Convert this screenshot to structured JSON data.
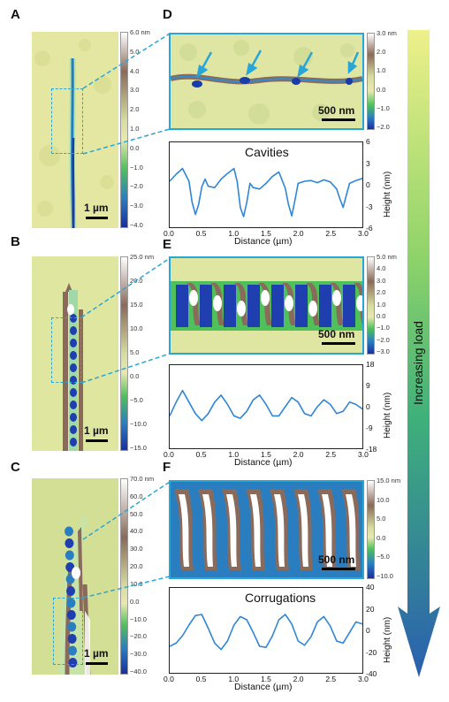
{
  "panels": {
    "A": {
      "label": "A",
      "scale_bar": "1 µm",
      "colorbar_ticks": [
        "6.0 nm",
        "5.0",
        "4.0",
        "3.0",
        "2.0",
        "1.0",
        "0.0",
        "−1.0",
        "−2.0",
        "−3.0",
        "−4.0"
      ]
    },
    "B": {
      "label": "B",
      "scale_bar": "1 µm",
      "colorbar_ticks": [
        "25.0 nm",
        "20.0",
        "15.0",
        "10.0",
        "5.0",
        "0.0",
        "−5.0",
        "−10.0",
        "−15.0"
      ]
    },
    "C": {
      "label": "C",
      "scale_bar": "1 µm",
      "colorbar_ticks": [
        "70.0 nm",
        "60.0",
        "50.0",
        "40.0",
        "30.0",
        "20.0",
        "10.0",
        "0.0",
        "−10.0",
        "−20.0",
        "−30.0",
        "−40.0"
      ]
    },
    "D": {
      "label": "D",
      "scale_bar": "500 nm",
      "colorbar_ticks": [
        "3.0 nm",
        "2.0",
        "1.0",
        "0.0",
        "−1.0",
        "−2.0"
      ]
    },
    "E": {
      "label": "E",
      "scale_bar": "500 nm",
      "colorbar_ticks": [
        "5.0 nm",
        "4.0",
        "3.0",
        "2.0",
        "1.0",
        "0.0",
        "−1.0",
        "−2.0",
        "−3.0"
      ]
    },
    "F": {
      "label": "F",
      "scale_bar": "500 nm",
      "colorbar_ticks": [
        "15.0 nm",
        "10.0",
        "5.0",
        "0.0",
        "−5.0",
        "−10.0"
      ]
    }
  },
  "load_label": "Increasing load",
  "chart_data": [
    {
      "type": "line",
      "title": "Cavities",
      "xlabel": "Distance (µm)",
      "ylabel": "Height (nm)",
      "xlim": [
        0,
        3.0
      ],
      "ylim": [
        -6,
        6
      ],
      "xticks": [
        "0.0",
        "0.5",
        "1.0",
        "1.5",
        "2.0",
        "2.5",
        "3.0"
      ],
      "yticks": [
        "6",
        "3",
        "0",
        "-3",
        "-6"
      ],
      "x": [
        0,
        0.1,
        0.2,
        0.3,
        0.35,
        0.4,
        0.45,
        0.5,
        0.55,
        0.6,
        0.7,
        0.8,
        0.9,
        1.0,
        1.05,
        1.1,
        1.15,
        1.2,
        1.25,
        1.3,
        1.4,
        1.5,
        1.6,
        1.7,
        1.8,
        1.85,
        1.9,
        1.95,
        2.0,
        2.1,
        2.2,
        2.3,
        2.4,
        2.5,
        2.6,
        2.65,
        2.7,
        2.75,
        2.8,
        2.9,
        3.0
      ],
      "y": [
        0.5,
        1.5,
        2.3,
        0.5,
        -2.5,
        -4.2,
        -2.8,
        -0.3,
        0.8,
        -0.2,
        -0.4,
        0.8,
        1.6,
        2.3,
        0.5,
        -3.2,
        -4.5,
        -2.5,
        0.2,
        -0.4,
        -0.6,
        0.2,
        1.2,
        1.8,
        -0.5,
        -2.8,
        -4.4,
        -2.2,
        0.2,
        0.5,
        0.6,
        0.3,
        0.7,
        0.4,
        -0.6,
        -2.0,
        -3.2,
        -1.5,
        0.2,
        0.6,
        0.9
      ]
    },
    {
      "type": "line",
      "title": "",
      "xlabel": "Distance (µm)",
      "ylabel": "Height (nm)",
      "xlim": [
        0,
        3.0
      ],
      "ylim": [
        -18,
        18
      ],
      "xticks": [
        "0.0",
        "0.5",
        "1.0",
        "1.5",
        "2.0",
        "2.5",
        "3.0"
      ],
      "yticks": [
        "18",
        "9",
        "0",
        "-9",
        "-18"
      ],
      "x": [
        0,
        0.1,
        0.2,
        0.3,
        0.4,
        0.5,
        0.6,
        0.7,
        0.8,
        0.9,
        1.0,
        1.1,
        1.2,
        1.3,
        1.4,
        1.5,
        1.6,
        1.7,
        1.8,
        1.9,
        2.0,
        2.1,
        2.2,
        2.3,
        2.4,
        2.5,
        2.6,
        2.7,
        2.8,
        2.9,
        3.0
      ],
      "y": [
        -4,
        2,
        7,
        2,
        -3,
        -6,
        -3,
        2,
        5,
        1,
        -4,
        -5,
        -2,
        3,
        5,
        1,
        -4,
        -4,
        0,
        4,
        2,
        -3,
        -4,
        0,
        3,
        1,
        -3,
        -2,
        2,
        1,
        -1
      ]
    },
    {
      "type": "line",
      "title": "Corrugations",
      "xlabel": "Distance (µm)",
      "ylabel": "Height (nm)",
      "xlim": [
        0,
        3.0
      ],
      "ylim": [
        -40,
        40
      ],
      "xticks": [
        "0.0",
        "0.5",
        "1.0",
        "1.5",
        "2.0",
        "2.5",
        "3.0"
      ],
      "yticks": [
        "40",
        "20",
        "0",
        "-20",
        "-40"
      ],
      "x": [
        0,
        0.1,
        0.2,
        0.3,
        0.4,
        0.5,
        0.6,
        0.7,
        0.8,
        0.9,
        1.0,
        1.1,
        1.2,
        1.3,
        1.4,
        1.5,
        1.6,
        1.7,
        1.8,
        1.9,
        2.0,
        2.1,
        2.2,
        2.3,
        2.4,
        2.5,
        2.6,
        2.7,
        2.8,
        2.9,
        3.0
      ],
      "y": [
        -15,
        -12,
        -5,
        5,
        14,
        15,
        2,
        -12,
        -18,
        -10,
        5,
        13,
        10,
        -2,
        -15,
        -16,
        -5,
        10,
        15,
        6,
        -10,
        -14,
        -6,
        8,
        13,
        4,
        -10,
        -12,
        -2,
        8,
        6
      ]
    }
  ]
}
